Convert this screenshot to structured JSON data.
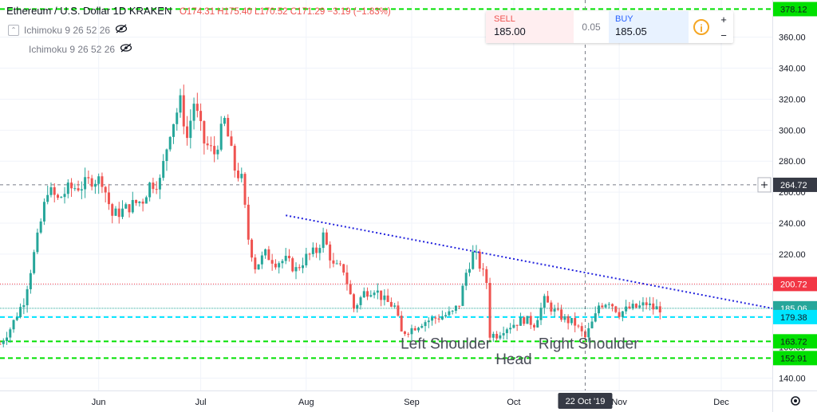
{
  "header": {
    "title": "Ethereum / U.S. Dollar  1D  KRAKEN",
    "ohlc": "O174.31  H175.40  L170.52  C171.29  −3.19 (−1.83%)"
  },
  "indicators": [
    {
      "label": "Ichimoku 9 26 52 26"
    },
    {
      "label": "Ichimoku 9 26 52 26"
    }
  ],
  "trade_panel": {
    "sell_label": "SELL",
    "sell_price": "185.00",
    "spread": "0.05",
    "buy_label": "BUY",
    "buy_price": "185.05",
    "plus": "+",
    "minus": "−"
  },
  "colors": {
    "up": "#26a69a",
    "down": "#ef5350",
    "green_level": "#00e000",
    "cyan_level": "#00e5ff",
    "red_level": "#f23645",
    "trendline": "#2222dd",
    "teal_line": "#26a69a"
  },
  "chart_data": {
    "type": "candlestick",
    "instrument": "Ethereum / U.S. Dollar",
    "timeframe": "1D",
    "exchange": "KRAKEN",
    "y_axis": {
      "range": [
        132,
        384
      ],
      "ticks": [
        140,
        160,
        180,
        200,
        220,
        240,
        260,
        280,
        300,
        320,
        340,
        360
      ],
      "tick_labels": [
        "140.00",
        "160.00",
        "180.00",
        "200.00",
        "220.00",
        "240.00",
        "260.00",
        "280.00",
        "300.00",
        "320.00",
        "340.00",
        "360.00"
      ]
    },
    "x_axis": {
      "range": [
        "2019-05-03",
        "2019-12-16"
      ],
      "ticks": [
        {
          "date": "2019-06-01",
          "label": "Jun"
        },
        {
          "date": "2019-07-01",
          "label": "Jul"
        },
        {
          "date": "2019-08-01",
          "label": "Aug"
        },
        {
          "date": "2019-09-01",
          "label": "Sep"
        },
        {
          "date": "2019-10-01",
          "label": "Oct"
        },
        {
          "date": "2019-11-01",
          "label": "Nov"
        },
        {
          "date": "2019-12-01",
          "label": "Dec"
        }
      ],
      "crosshair_label": "22 Oct '19",
      "crosshair_date": "2019-10-22"
    },
    "closes": [
      {
        "date": "2019-05-03",
        "close": 162
      },
      {
        "date": "2019-05-06",
        "close": 172
      },
      {
        "date": "2019-05-10",
        "close": 190
      },
      {
        "date": "2019-05-14",
        "close": 230
      },
      {
        "date": "2019-05-17",
        "close": 262
      },
      {
        "date": "2019-05-20",
        "close": 255
      },
      {
        "date": "2019-05-23",
        "close": 262
      },
      {
        "date": "2019-05-27",
        "close": 264
      },
      {
        "date": "2019-05-30",
        "close": 268
      },
      {
        "date": "2019-06-02",
        "close": 268
      },
      {
        "date": "2019-06-05",
        "close": 245
      },
      {
        "date": "2019-06-08",
        "close": 248
      },
      {
        "date": "2019-06-11",
        "close": 252
      },
      {
        "date": "2019-06-14",
        "close": 255
      },
      {
        "date": "2019-06-16",
        "close": 265
      },
      {
        "date": "2019-06-19",
        "close": 267
      },
      {
        "date": "2019-06-22",
        "close": 300
      },
      {
        "date": "2019-06-25",
        "close": 318
      },
      {
        "date": "2019-06-27",
        "close": 295
      },
      {
        "date": "2019-06-29",
        "close": 318
      },
      {
        "date": "2019-07-02",
        "close": 292
      },
      {
        "date": "2019-07-05",
        "close": 285
      },
      {
        "date": "2019-07-08",
        "close": 306
      },
      {
        "date": "2019-07-11",
        "close": 275
      },
      {
        "date": "2019-07-13",
        "close": 268
      },
      {
        "date": "2019-07-15",
        "close": 230
      },
      {
        "date": "2019-07-17",
        "close": 212
      },
      {
        "date": "2019-07-20",
        "close": 220
      },
      {
        "date": "2019-07-23",
        "close": 215
      },
      {
        "date": "2019-07-26",
        "close": 216
      },
      {
        "date": "2019-07-29",
        "close": 210
      },
      {
        "date": "2019-08-01",
        "close": 218
      },
      {
        "date": "2019-08-04",
        "close": 222
      },
      {
        "date": "2019-08-06",
        "close": 232
      },
      {
        "date": "2019-08-09",
        "close": 212
      },
      {
        "date": "2019-08-12",
        "close": 210
      },
      {
        "date": "2019-08-15",
        "close": 185
      },
      {
        "date": "2019-08-18",
        "close": 195
      },
      {
        "date": "2019-08-21",
        "close": 198
      },
      {
        "date": "2019-08-24",
        "close": 190
      },
      {
        "date": "2019-08-27",
        "close": 186
      },
      {
        "date": "2019-08-29",
        "close": 169
      },
      {
        "date": "2019-09-01",
        "close": 172
      },
      {
        "date": "2019-09-04",
        "close": 176
      },
      {
        "date": "2019-09-07",
        "close": 178
      },
      {
        "date": "2019-09-10",
        "close": 180
      },
      {
        "date": "2019-09-13",
        "close": 182
      },
      {
        "date": "2019-09-15",
        "close": 188
      },
      {
        "date": "2019-09-17",
        "close": 208
      },
      {
        "date": "2019-09-19",
        "close": 220
      },
      {
        "date": "2019-09-20",
        "close": 218
      },
      {
        "date": "2019-09-23",
        "close": 202
      },
      {
        "date": "2019-09-24",
        "close": 168
      },
      {
        "date": "2019-09-26",
        "close": 168
      },
      {
        "date": "2019-09-28",
        "close": 172
      },
      {
        "date": "2019-10-01",
        "close": 175
      },
      {
        "date": "2019-10-04",
        "close": 178
      },
      {
        "date": "2019-10-07",
        "close": 175
      },
      {
        "date": "2019-10-10",
        "close": 190
      },
      {
        "date": "2019-10-13",
        "close": 183
      },
      {
        "date": "2019-10-16",
        "close": 178
      },
      {
        "date": "2019-10-19",
        "close": 175
      },
      {
        "date": "2019-10-22",
        "close": 166
      },
      {
        "date": "2019-10-25",
        "close": 180
      },
      {
        "date": "2019-10-26",
        "close": 187
      },
      {
        "date": "2019-10-29",
        "close": 190
      },
      {
        "date": "2019-11-01",
        "close": 182
      },
      {
        "date": "2019-11-04",
        "close": 185
      },
      {
        "date": "2019-11-07",
        "close": 186
      },
      {
        "date": "2019-11-09",
        "close": 188
      },
      {
        "date": "2019-11-11",
        "close": 185
      },
      {
        "date": "2019-11-13",
        "close": 185
      }
    ],
    "horizontal_levels": [
      {
        "value": 378.12,
        "label": "378.12",
        "style": "green-dash"
      },
      {
        "value": 264.72,
        "label": "264.72",
        "style": "gray-crosshair"
      },
      {
        "value": 200.72,
        "label": "200.72",
        "style": "red-dotted"
      },
      {
        "value": 185.06,
        "label": "185.06",
        "style": "teal-solid"
      },
      {
        "value": 179.38,
        "label": "179.38",
        "style": "cyan-dash"
      },
      {
        "value": 163.72,
        "label": "163.72",
        "style": "green-dash"
      },
      {
        "value": 152.91,
        "label": "152.91",
        "style": "green-dash"
      }
    ],
    "trendline": {
      "from": {
        "date": "2019-07-26",
        "value": 245
      },
      "to": {
        "date": "2019-12-16",
        "value": 185
      }
    },
    "annotations": [
      {
        "text": "Left Shoulder",
        "date": "2019-09-11",
        "value": 159
      },
      {
        "text": "Head",
        "date": "2019-10-01",
        "value": 149
      },
      {
        "text": "Right Shoulder",
        "date": "2019-10-23",
        "value": 159
      }
    ]
  }
}
